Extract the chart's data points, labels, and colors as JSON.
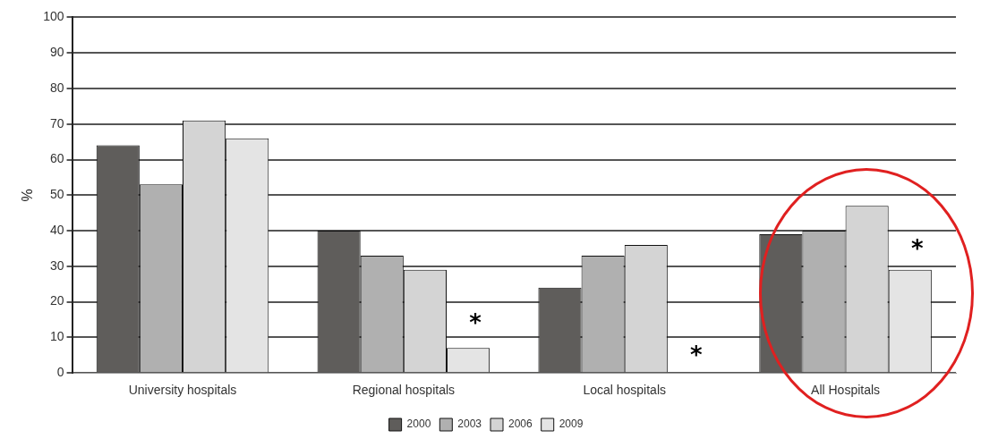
{
  "chart_data": {
    "type": "bar",
    "ylabel": "%",
    "categories": [
      "University hospitals",
      "Regional hospitals",
      "Local hospitals",
      "All Hospitals"
    ],
    "series": [
      {
        "name": "2000",
        "color": "#5f5d5b",
        "values": [
          64,
          40,
          24,
          39
        ]
      },
      {
        "name": "2003",
        "color": "#b0b0b0",
        "values": [
          53,
          33,
          33,
          40
        ]
      },
      {
        "name": "2006",
        "color": "#d4d4d4",
        "values": [
          71,
          29,
          36,
          47
        ]
      },
      {
        "name": "2009",
        "color": "#e4e4e4",
        "values": [
          66,
          7,
          null,
          29
        ]
      }
    ],
    "ylim": [
      0,
      100
    ],
    "yticks": [
      0,
      10,
      20,
      30,
      40,
      50,
      60,
      70,
      80,
      90,
      100
    ],
    "grid": "y",
    "legend": "bottom",
    "annotations": [
      {
        "text": "*",
        "x": "Regional hospitals",
        "y": 15
      },
      {
        "text": "*",
        "x": "Local hospitals",
        "y": 6
      },
      {
        "text": "*",
        "x": "All Hospitals",
        "y": 36
      }
    ]
  }
}
